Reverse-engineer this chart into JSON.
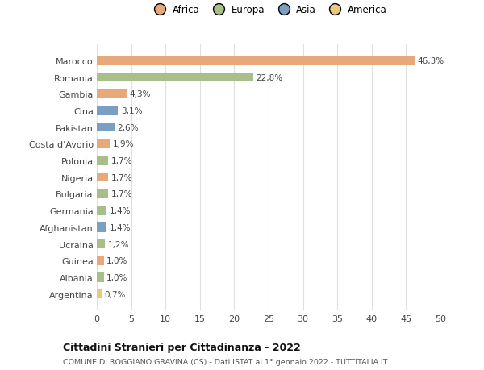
{
  "countries": [
    "Argentina",
    "Albania",
    "Guinea",
    "Ucraina",
    "Afghanistan",
    "Germania",
    "Bulgaria",
    "Nigeria",
    "Polonia",
    "Costa d'Avorio",
    "Pakistan",
    "Cina",
    "Gambia",
    "Romania",
    "Marocco"
  ],
  "values": [
    0.7,
    1.0,
    1.0,
    1.2,
    1.4,
    1.4,
    1.7,
    1.7,
    1.7,
    1.9,
    2.6,
    3.1,
    4.3,
    22.8,
    46.3
  ],
  "labels": [
    "0,7%",
    "1,0%",
    "1,0%",
    "1,2%",
    "1,4%",
    "1,4%",
    "1,7%",
    "1,7%",
    "1,7%",
    "1,9%",
    "2,6%",
    "3,1%",
    "4,3%",
    "22,8%",
    "46,3%"
  ],
  "colors": [
    "#e8c97e",
    "#a8bf8a",
    "#e8a87a",
    "#a8bf8a",
    "#7a9fc2",
    "#a8bf8a",
    "#a8bf8a",
    "#e8a87a",
    "#a8bf8a",
    "#e8a87a",
    "#7a9fc2",
    "#7a9fc2",
    "#e8a87a",
    "#a8bf8a",
    "#e8a87a"
  ],
  "continent_colors": {
    "Africa": "#e8a87a",
    "Europa": "#a8bf8a",
    "Asia": "#7a9fc2",
    "America": "#e8c97e"
  },
  "title": "Cittadini Stranieri per Cittadinanza - 2022",
  "subtitle": "COMUNE DI ROGGIANO GRAVINA (CS) - Dati ISTAT al 1° gennaio 2022 - TUTTITALIA.IT",
  "xlim": [
    0,
    50
  ],
  "xticks": [
    0,
    5,
    10,
    15,
    20,
    25,
    30,
    35,
    40,
    45,
    50
  ],
  "bg_color": "#ffffff",
  "grid_color": "#e0e0e0"
}
